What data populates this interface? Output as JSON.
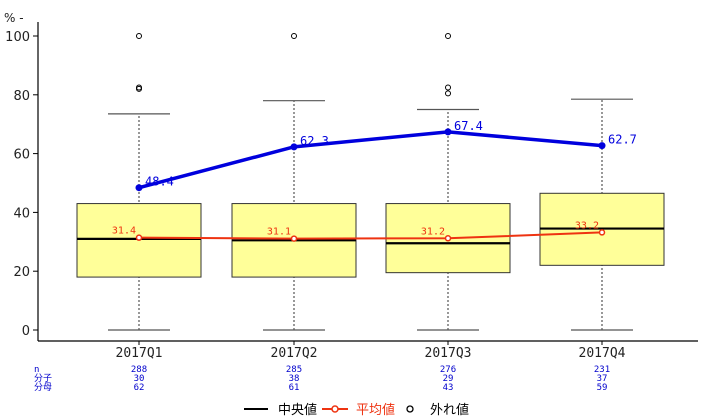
{
  "chart_data": {
    "type": "box",
    "y_unit": "%",
    "ylim": [
      0,
      100
    ],
    "y_ticks": [
      "0",
      "20",
      "40",
      "60",
      "80",
      "100"
    ],
    "categories": [
      "2017Q1",
      "2017Q2",
      "2017Q3",
      "2017Q4"
    ],
    "boxes": [
      {
        "whisker_low": 0,
        "q1": 18,
        "median": 31,
        "q3": 43,
        "whisker_high": 73.5,
        "outliers": [
          82,
          82.5,
          100
        ]
      },
      {
        "whisker_low": 0,
        "q1": 18,
        "median": 30.5,
        "q3": 43,
        "whisker_high": 78,
        "outliers": [
          100
        ]
      },
      {
        "whisker_low": 0,
        "q1": 19.5,
        "median": 29.5,
        "q3": 43,
        "whisker_high": 75,
        "outliers": [
          80.5,
          82.5,
          100
        ]
      },
      {
        "whisker_low": 0,
        "q1": 22,
        "median": 34.5,
        "q3": 46.5,
        "whisker_high": 78.5,
        "outliers": []
      }
    ],
    "series": [
      {
        "key": "mean",
        "color": "#ee3311",
        "values": [
          31.4,
          31.1,
          31.2,
          33.2
        ],
        "labels": [
          "31.4",
          "31.1",
          "31.2",
          "33.2"
        ]
      },
      {
        "key": "pooled",
        "color": "#0000dd",
        "values": [
          48.4,
          62.3,
          67.4,
          62.7
        ],
        "labels": [
          "48.4",
          "62.3",
          "67.4",
          "62.7"
        ]
      }
    ],
    "stat_rows": [
      {
        "label": "n",
        "values": [
          "288",
          "285",
          "276",
          "231"
        ]
      },
      {
        "label": "分子",
        "values": [
          "30",
          "38",
          "29",
          "37"
        ]
      },
      {
        "label": "分母",
        "values": [
          "62",
          "61",
          "43",
          "59"
        ]
      }
    ],
    "legend": {
      "position": "bottom",
      "items": [
        {
          "key": "median",
          "label": "中央値",
          "color": "#000000"
        },
        {
          "key": "mean",
          "label": "平均値",
          "color": "#ee3311"
        },
        {
          "key": "outlier",
          "label": "外れ値",
          "color": "#000000"
        }
      ]
    },
    "colors": {
      "box_fill": "#ffff99",
      "stat_text": "#0000cc",
      "axis": "#000000"
    }
  }
}
